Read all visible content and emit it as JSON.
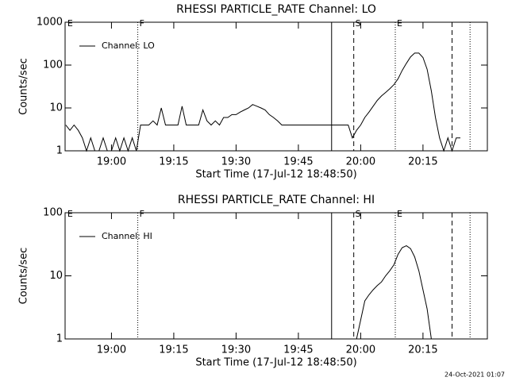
{
  "chart_data": [
    {
      "type": "line",
      "title": "RHESSI PARTICLE_RATE Channel: LO",
      "xlabel": "Start Time (17-Jul-12 18:48:50)",
      "ylabel": "Counts/sec",
      "log_y": true,
      "ylim": [
        1,
        1000
      ],
      "yticks": [
        1,
        10,
        100,
        1000
      ],
      "xlim": [
        "18:48:50",
        "20:30:30"
      ],
      "xticks": [
        "19:00",
        "19:15",
        "19:30",
        "19:45",
        "20:00",
        "20:15"
      ],
      "legend": "top-left",
      "markers": [
        {
          "x": "18:49",
          "label": "E",
          "style": "none"
        },
        {
          "x": "19:06:20",
          "label": "F",
          "style": "dotted"
        },
        {
          "x": "19:53",
          "style": "solid"
        },
        {
          "x": "19:58:20",
          "label": "S",
          "style": "dashed"
        },
        {
          "x": "20:08:20",
          "label": "E",
          "style": "dotted"
        },
        {
          "x": "20:22",
          "style": "dashed"
        },
        {
          "x": "20:26:20",
          "style": "dotted"
        }
      ],
      "series": [
        {
          "name": "Channel: LO",
          "color": "#000000",
          "x": [
            "18:49",
            "18:50",
            "18:51",
            "18:52",
            "18:53",
            "18:54",
            "18:55",
            "18:56",
            "18:57",
            "18:58",
            "18:59",
            "19:00",
            "19:01",
            "19:02",
            "19:03",
            "19:04",
            "19:05",
            "19:06",
            "19:07",
            "19:08",
            "19:09",
            "19:10",
            "19:11",
            "19:12",
            "19:13",
            "19:14",
            "19:15",
            "19:16",
            "19:17",
            "19:18",
            "19:19",
            "19:20",
            "19:21",
            "19:22",
            "19:23",
            "19:24",
            "19:25",
            "19:26",
            "19:27",
            "19:28",
            "19:29",
            "19:30",
            "19:31",
            "19:32",
            "19:33",
            "19:34",
            "19:35",
            "19:36",
            "19:37",
            "19:38",
            "19:39",
            "19:40",
            "19:41",
            "19:42",
            "19:43",
            "19:44",
            "19:45",
            "19:46",
            "19:47",
            "19:48",
            "19:49",
            "19:50",
            "19:51",
            "19:52",
            "19:53",
            "19:54",
            "19:55",
            "19:56",
            "19:57",
            "19:58",
            "19:59",
            "20:00",
            "20:01",
            "20:02",
            "20:03",
            "20:04",
            "20:05",
            "20:06",
            "20:07",
            "20:08",
            "20:09",
            "20:10",
            "20:11",
            "20:12",
            "20:13",
            "20:14",
            "20:15",
            "20:16",
            "20:17",
            "20:18",
            "20:19",
            "20:20",
            "20:21",
            "20:22",
            "20:23",
            "20:24"
          ],
          "values": [
            4,
            3,
            4,
            3,
            2,
            1,
            2,
            1,
            1,
            2,
            1,
            1,
            2,
            1,
            2,
            1,
            2,
            1,
            4,
            4,
            4,
            5,
            4,
            10,
            4,
            4,
            4,
            4,
            11,
            4,
            4,
            4,
            4,
            9,
            5,
            4,
            5,
            4,
            6,
            6,
            7,
            7,
            8,
            9,
            10,
            12,
            11,
            10,
            9,
            7,
            6,
            5,
            4,
            4,
            4,
            4,
            4,
            4,
            4,
            4,
            4,
            4,
            4,
            4,
            4,
            4,
            4,
            4,
            4,
            2,
            3,
            4,
            6,
            8,
            11,
            15,
            19,
            23,
            28,
            35,
            48,
            75,
            110,
            155,
            190,
            190,
            150,
            80,
            25,
            6,
            2,
            1,
            2,
            1,
            2,
            2
          ]
        }
      ]
    },
    {
      "type": "line",
      "title": "RHESSI PARTICLE_RATE Channel: HI",
      "xlabel": "Start Time (17-Jul-12 18:48:50)",
      "ylabel": "Counts/sec",
      "log_y": true,
      "ylim": [
        1,
        100
      ],
      "yticks": [
        1,
        10,
        100
      ],
      "xlim": [
        "18:48:50",
        "20:30:30"
      ],
      "xticks": [
        "19:00",
        "19:15",
        "19:30",
        "19:45",
        "20:00",
        "20:15"
      ],
      "legend": "top-left",
      "markers": [
        {
          "x": "18:49",
          "label": "E",
          "style": "none"
        },
        {
          "x": "19:06:20",
          "label": "F",
          "style": "dotted"
        },
        {
          "x": "19:53",
          "style": "solid"
        },
        {
          "x": "19:58:20",
          "label": "S",
          "style": "dashed"
        },
        {
          "x": "20:08:20",
          "label": "E",
          "style": "dotted"
        },
        {
          "x": "20:22",
          "style": "dashed"
        },
        {
          "x": "20:26:20",
          "style": "dotted"
        }
      ],
      "series": [
        {
          "name": "Channel: HI",
          "color": "#000000",
          "x": [
            "19:59",
            "20:00",
            "20:01",
            "20:02",
            "20:03",
            "20:04",
            "20:05",
            "20:06",
            "20:07",
            "20:08",
            "20:09",
            "20:10",
            "20:11",
            "20:12",
            "20:13",
            "20:14",
            "20:15",
            "20:16",
            "20:17"
          ],
          "values": [
            1,
            2,
            4,
            5,
            6,
            7,
            8,
            10,
            12,
            15,
            22,
            28,
            30,
            27,
            20,
            12,
            6,
            3,
            1
          ]
        }
      ]
    }
  ],
  "footer": "24-Oct-2021 01:07"
}
